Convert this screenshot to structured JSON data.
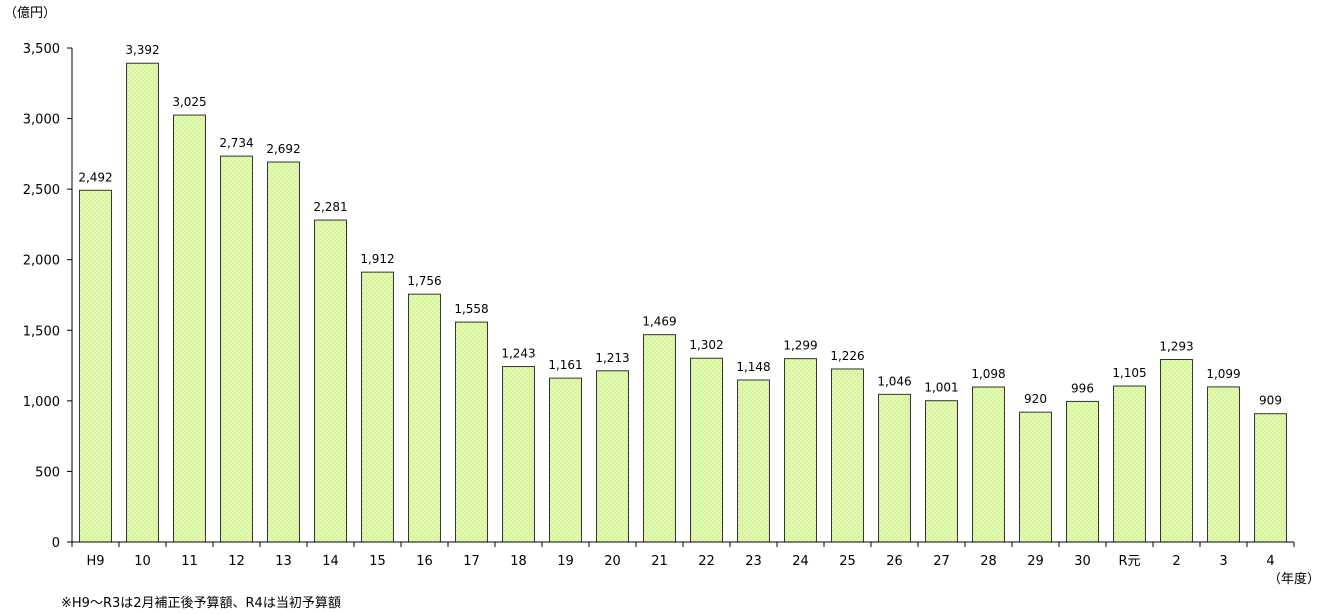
{
  "chart_data": {
    "type": "bar",
    "y_unit": "（億円）",
    "x_unit": "（年度）",
    "note": "※H9～R3は2月補正後予算額、R4は当初予算額",
    "ylim": [
      0,
      3500
    ],
    "y_ticks": [
      0,
      500,
      1000,
      1500,
      2000,
      2500,
      3000,
      3500
    ],
    "y_tick_labels": [
      "0",
      "500",
      "1,000",
      "1,500",
      "2,000",
      "2,500",
      "3,000",
      "3,500"
    ],
    "grid": false,
    "categories": [
      "H9",
      "10",
      "11",
      "12",
      "13",
      "14",
      "15",
      "16",
      "17",
      "18",
      "19",
      "20",
      "21",
      "22",
      "23",
      "24",
      "25",
      "26",
      "27",
      "28",
      "29",
      "30",
      "R元",
      "2",
      "3",
      "4"
    ],
    "values": [
      2492,
      3392,
      3025,
      2734,
      2692,
      2281,
      1912,
      1756,
      1558,
      1243,
      1161,
      1213,
      1469,
      1302,
      1148,
      1299,
      1226,
      1046,
      1001,
      1098,
      920,
      996,
      1105,
      1293,
      1099,
      909
    ],
    "value_labels": [
      "2,492",
      "3,392",
      "3,025",
      "2,734",
      "2,692",
      "2,281",
      "1,912",
      "1,756",
      "1,558",
      "1,243",
      "1,161",
      "1,213",
      "1,469",
      "1,302",
      "1,148",
      "1,299",
      "1,226",
      "1,046",
      "1,001",
      "1,098",
      "920",
      "996",
      "1,105",
      "1,293",
      "1,099",
      "909"
    ],
    "bar_color": "#ccf08a",
    "bar_stroke": "#333333"
  }
}
